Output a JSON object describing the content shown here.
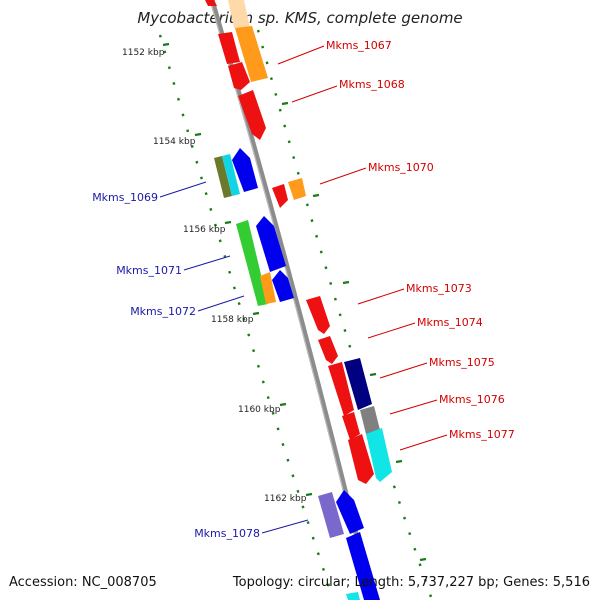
{
  "title": "Mycobacterium sp. KMS, complete genome",
  "footer": {
    "accession": "Accession: NC_008705",
    "topology": "Topology: circular; Length: 5,737,227 bp; Genes: 5,516"
  },
  "scale_labels": [
    {
      "text": "1152 kbp"
    },
    {
      "text": "1154 kbp"
    },
    {
      "text": "1156 kbp"
    },
    {
      "text": "1158 kbp"
    },
    {
      "text": "1160 kbp"
    },
    {
      "text": "1162 kbp"
    }
  ],
  "gene_labels_forward": [
    {
      "text": "Mkms_1067"
    },
    {
      "text": "Mkms_1068"
    },
    {
      "text": "Mkms_1070"
    },
    {
      "text": "Mkms_1073"
    },
    {
      "text": "Mkms_1074"
    },
    {
      "text": "Mkms_1075"
    },
    {
      "text": "Mkms_1076"
    },
    {
      "text": "Mkms_1077"
    }
  ],
  "gene_labels_reverse": [
    {
      "text": "Mkms_1069"
    },
    {
      "text": "Mkms_1071"
    },
    {
      "text": "Mkms_1072"
    },
    {
      "text": "Mkms_1078"
    }
  ],
  "colors": {
    "forward_label": "#d40000",
    "reverse_label": "#1a1aa6",
    "backbone": "#8c8c8c",
    "tick": "#1b7a1b"
  }
}
